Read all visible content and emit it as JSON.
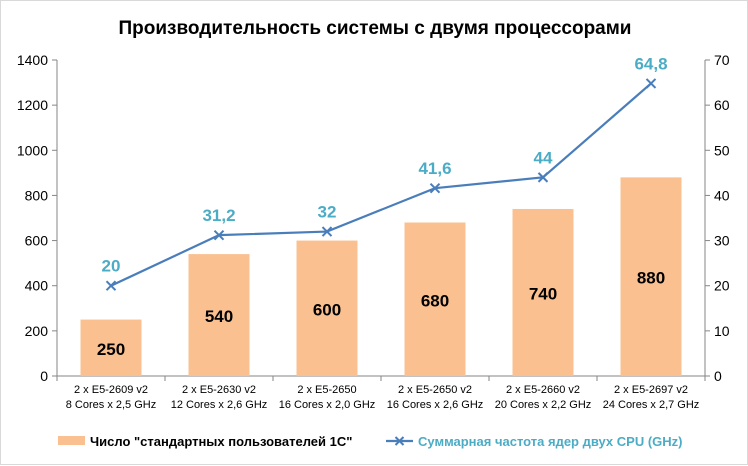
{
  "chart_data": {
    "type": "bar+line",
    "title": "Производительность системы с двумя процессорами",
    "categories": [
      [
        "2 x E5-2609 v2",
        "8 Cores x 2,5 GHz"
      ],
      [
        "2 x E5-2630 v2",
        "12 Cores x 2,6 GHz"
      ],
      [
        "2 x E5-2650",
        "16 Cores x 2,0 GHz"
      ],
      [
        "2 x E5-2650 v2",
        "16 Cores x 2,6 GHz"
      ],
      [
        "2 x E5-2660 v2",
        "20 Cores x 2,2 GHz"
      ],
      [
        "2 x E5-2697 v2",
        "24 Cores x 2,7 GHz"
      ]
    ],
    "series": [
      {
        "name": "Число \"стандартных пользователей 1С\"",
        "type": "bar",
        "axis": "left",
        "color": "#fac090",
        "values": [
          250,
          540,
          600,
          680,
          740,
          880
        ],
        "labels": [
          "250",
          "540",
          "600",
          "680",
          "740",
          "880"
        ]
      },
      {
        "name": "Суммарная частота ядер двух CPU (GHz)",
        "type": "line",
        "axis": "right",
        "color": "#4a7ebb",
        "label_color": "#4bacc6",
        "marker": "x",
        "values": [
          20,
          31.2,
          32,
          41.6,
          44,
          64.8
        ],
        "labels": [
          "20",
          "31,2",
          "32",
          "41,6",
          "44",
          "64,8"
        ]
      }
    ],
    "y_left": {
      "min": 0,
      "max": 1400,
      "step": 200,
      "ticks": [
        "0",
        "200",
        "400",
        "600",
        "800",
        "1000",
        "1200",
        "1400"
      ]
    },
    "y_right": {
      "min": 0,
      "max": 70,
      "step": 10,
      "ticks": [
        "0",
        "10",
        "20",
        "30",
        "40",
        "50",
        "60",
        "70"
      ]
    },
    "grid": false,
    "legend_position": "bottom"
  }
}
